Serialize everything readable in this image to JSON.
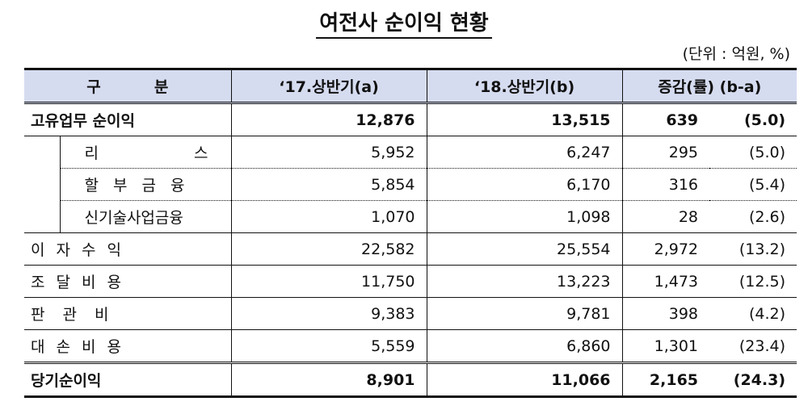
{
  "title": "여전사 순이익 현황",
  "unit": "(단위 : 억원, %)",
  "headers": {
    "category": "구          분",
    "h1_2017": "‘17.상반기(a)",
    "h1_2018": "‘18.상반기(b)",
    "change": "증감(률) (b-a)"
  },
  "rows": [
    {
      "label": "고유업무 순이익",
      "a": "12,876",
      "b": "13,515",
      "diff": "639",
      "rate": "(5.0)"
    },
    {
      "label": "리 스",
      "label_left": "리",
      "label_right": "스",
      "a": "5,952",
      "b": "6,247",
      "diff": "295",
      "rate": "(5.0)"
    },
    {
      "label": "할 부 금 융",
      "a": "5,854",
      "b": "6,170",
      "diff": "316",
      "rate": "(5.4)"
    },
    {
      "label": "신기술사업금융",
      "a": "1,070",
      "b": "1,098",
      "diff": "28",
      "rate": "(2.6)"
    },
    {
      "label": "이 자 수 익",
      "a": "22,582",
      "b": "25,554",
      "diff": "2,972",
      "rate": "(13.2)"
    },
    {
      "label": "조 달 비 용",
      "a": "11,750",
      "b": "13,223",
      "diff": "1,473",
      "rate": "(12.5)"
    },
    {
      "label": "판 관 비",
      "a": "9,383",
      "b": "9,781",
      "diff": "398",
      "rate": "(4.2)"
    },
    {
      "label": "대 손 비 용",
      "a": "5,559",
      "b": "6,860",
      "diff": "1,301",
      "rate": "(23.4)"
    },
    {
      "label": "당기순이익",
      "a": "8,901",
      "b": "11,066",
      "diff": "2,165",
      "rate": "(24.3)"
    }
  ]
}
